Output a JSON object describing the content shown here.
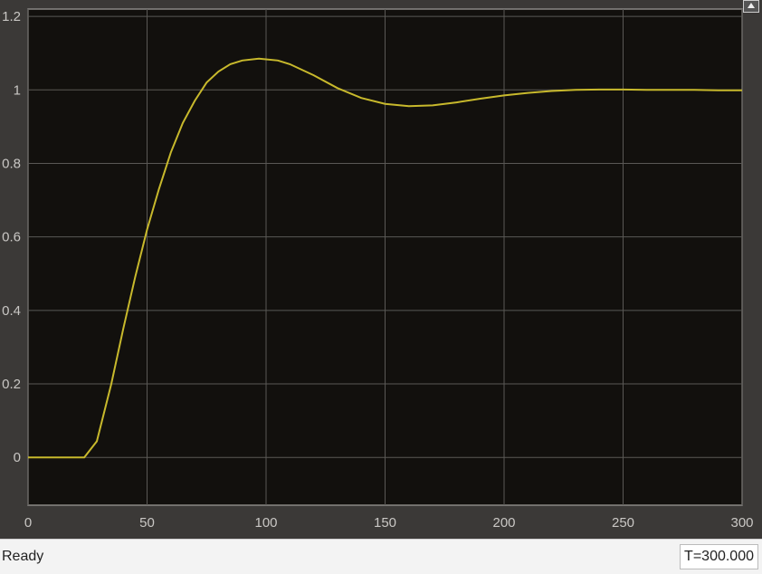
{
  "status": {
    "text": "Ready",
    "time": "T=300.000"
  },
  "colors": {
    "background": "#12100d",
    "grid": "#5a5855",
    "line": "#c8b92c"
  },
  "icons": {
    "restore": "axes-restore-icon"
  },
  "chart_data": {
    "type": "line",
    "title": "",
    "xlabel": "",
    "ylabel": "",
    "xlim": [
      0,
      300
    ],
    "ylim": [
      -0.13,
      1.22
    ],
    "grid": true,
    "xticks": [
      "0",
      "50",
      "100",
      "150",
      "200",
      "250",
      "300"
    ],
    "yticks": [
      "0",
      "0.2",
      "0.4",
      "0.6",
      "0.8",
      "1",
      "1.2"
    ],
    "series": [
      {
        "x": [
          0,
          23.6,
          28.9,
          35,
          40,
          45,
          50,
          55,
          60,
          65,
          70,
          75,
          80,
          85,
          90,
          97,
          105,
          110,
          120,
          130,
          140,
          150,
          160,
          170,
          180,
          190,
          200,
          210,
          220,
          230,
          240,
          250,
          260,
          270,
          280,
          290,
          300
        ],
        "y": [
          0,
          0,
          0.044,
          0.2,
          0.35,
          0.49,
          0.62,
          0.73,
          0.83,
          0.91,
          0.97,
          1.02,
          1.05,
          1.07,
          1.08,
          1.085,
          1.08,
          1.07,
          1.04,
          1.005,
          0.978,
          0.962,
          0.956,
          0.958,
          0.966,
          0.976,
          0.985,
          0.992,
          0.997,
          1.0,
          1.001,
          1.001,
          1.0,
          1.0,
          1.0,
          0.999,
          0.999
        ]
      }
    ]
  }
}
